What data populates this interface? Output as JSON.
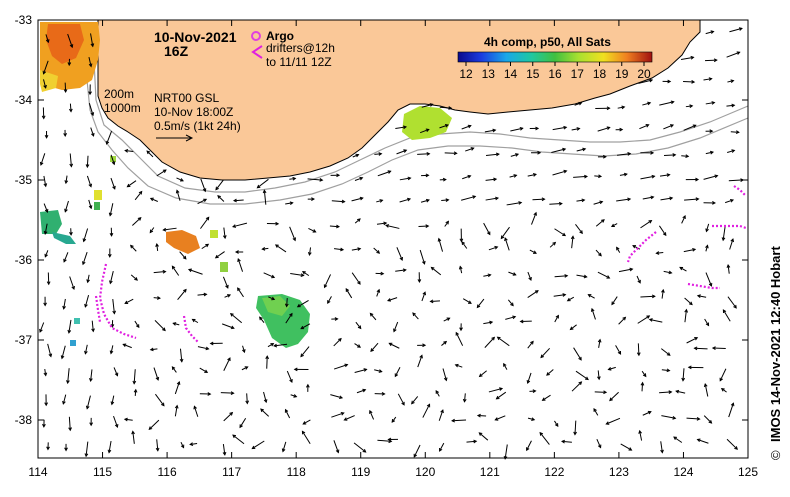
{
  "header": {
    "date": "10-Nov-2021",
    "time": "16Z"
  },
  "legend": {
    "argo_label": "Argo",
    "drifters_label": "drifters@12h",
    "drifters_sub": "to 11/11 12Z",
    "isobath_shallow": "200m",
    "isobath_deep": "1000m",
    "product": "NRT00 GSL",
    "product_time": "10-Nov 18:00Z",
    "vector_scale": "0.5m/s (1kt 24h)"
  },
  "colorbar": {
    "title": "4h comp, p50, All Sats",
    "ticks": [
      "12",
      "13",
      "14",
      "15",
      "16",
      "17",
      "18",
      "19",
      "20"
    ]
  },
  "axes": {
    "lon_ticks": [
      "114",
      "115",
      "116",
      "117",
      "118",
      "119",
      "120",
      "121",
      "122",
      "123",
      "124",
      "125"
    ],
    "lat_ticks": [
      "-33",
      "-34",
      "-35",
      "-36",
      "-37",
      "-38"
    ]
  },
  "credit": {
    "symbol": "©",
    "text": "IMOS 14-Nov-2021 12:40 Hobart"
  },
  "colors": {
    "land": "#fac898",
    "argo": "#e040e0",
    "drifter": "#e020e0",
    "isobath": "#a0a0a0",
    "arrow": "#000000"
  }
}
